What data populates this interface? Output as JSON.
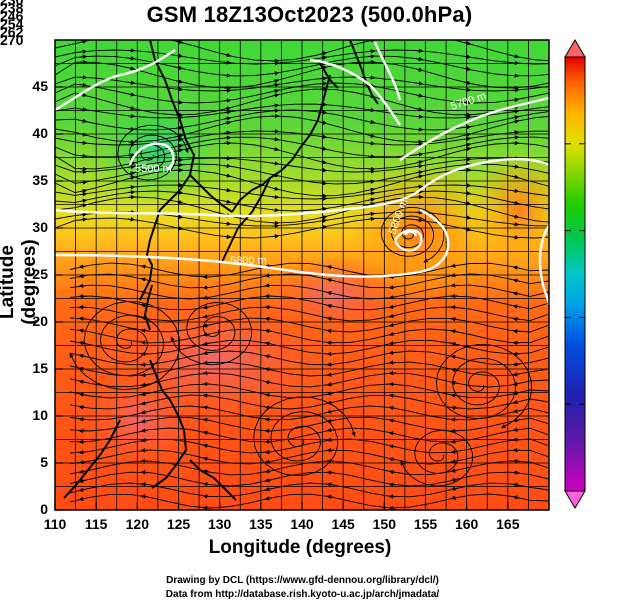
{
  "title": "GSM 18Z13Oct2023 (500.0hPa)",
  "xlabel": "Longitude (degrees)",
  "ylabel": "Latitude (degrees)",
  "credits": {
    "line1": "Drawing by DCL (https://www.gfd-dennou.org/library/dcl/)",
    "line2": "Data from http://database.rish.kyoto-u.ac.jp/arch/jmadata/"
  },
  "chart_data": {
    "type": "heatmap",
    "variable": "temperature-like shaded field with streamlines and height contours",
    "xlim": [
      110,
      170
    ],
    "ylim": [
      0,
      50
    ],
    "x_ticks": [
      "110",
      "115",
      "120",
      "125",
      "130",
      "135",
      "140",
      "145",
      "150",
      "155",
      "160",
      "165"
    ],
    "y_ticks": [
      "0",
      "5",
      "10",
      "15",
      "20",
      "25",
      "30",
      "35",
      "40",
      "45"
    ],
    "colorbar": {
      "min": 230,
      "max": 270,
      "ticks": [
        "230",
        "238",
        "246",
        "254",
        "262",
        "270"
      ],
      "colors": [
        "#d000c0",
        "#2020b0",
        "#0060f0",
        "#00c8c8",
        "#00c800",
        "#50d200",
        "#d0e400",
        "#ffb400",
        "#ff6000",
        "#e00000"
      ]
    },
    "contour_labels": [
      "5500 m",
      "5700 m",
      "5700 m",
      "5800 m",
      "5800 m",
      "5900 m"
    ],
    "features": [
      "cyclone near 120E 41N",
      "typhoon near 152E 32N",
      "circulation near 118E 20N",
      "circulation near 160E 15N",
      "circulation near 140E 8N"
    ],
    "grid": true
  }
}
